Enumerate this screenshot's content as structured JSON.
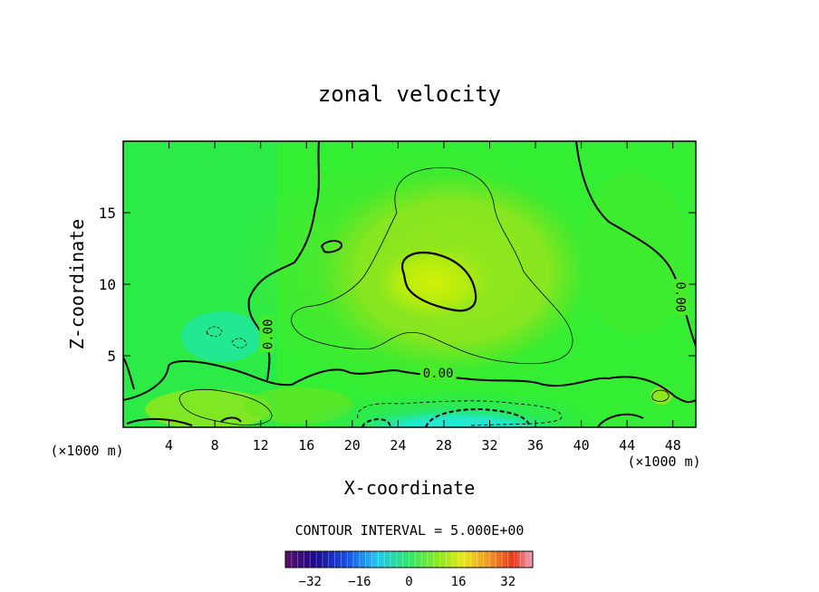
{
  "chart_data": {
    "type": "heatmap",
    "title": "zonal velocity",
    "xlabel": "X-coordinate",
    "ylabel": "Z-coordinate",
    "x_unit_left": "(×1000 m)",
    "x_unit_right": "(×1000 m)",
    "xlim": [
      0,
      50
    ],
    "ylim": [
      0,
      20
    ],
    "x_ticks": [
      {
        "value": 4,
        "label": "4"
      },
      {
        "value": 8,
        "label": "8"
      },
      {
        "value": 12,
        "label": "12"
      },
      {
        "value": 16,
        "label": "16"
      },
      {
        "value": 20,
        "label": "20"
      },
      {
        "value": 24,
        "label": "24"
      },
      {
        "value": 28,
        "label": "28"
      },
      {
        "value": 32,
        "label": "32"
      },
      {
        "value": 36,
        "label": "36"
      },
      {
        "value": 40,
        "label": "40"
      },
      {
        "value": 44,
        "label": "44"
      },
      {
        "value": 48,
        "label": "48"
      }
    ],
    "y_ticks": [
      {
        "value": 5,
        "label": "5"
      },
      {
        "value": 10,
        "label": "10"
      },
      {
        "value": 15,
        "label": "15"
      }
    ],
    "contour_interval_text": "CONTOUR INTERVAL = 5.000E+00",
    "contour_labels": [
      {
        "text": "0.00",
        "x": 27.5,
        "y": 3.8,
        "rotate": 0
      },
      {
        "text": "0.00",
        "x": 12.6,
        "y": 6.5,
        "rotate": -90
      },
      {
        "text": "0.00",
        "x": 48.7,
        "y": 9.1,
        "rotate": 90
      }
    ],
    "colorbar": {
      "min": -40,
      "max": 40,
      "ticks": [
        {
          "value": -32,
          "label": "−32"
        },
        {
          "value": -16,
          "label": "−16"
        },
        {
          "value": 0,
          "label": "0"
        },
        {
          "value": 16,
          "label": "16"
        },
        {
          "value": 32,
          "label": "32"
        }
      ]
    },
    "field_colors": {
      "background": "#33ee33",
      "positive_core": "#ccf20a",
      "positive_mid": "#9be81a",
      "weak_positive": "#66e622",
      "weak_negative": "#22e66a",
      "negative_mid": "#1fe7b3",
      "negative_core": "#27e9f0"
    }
  }
}
